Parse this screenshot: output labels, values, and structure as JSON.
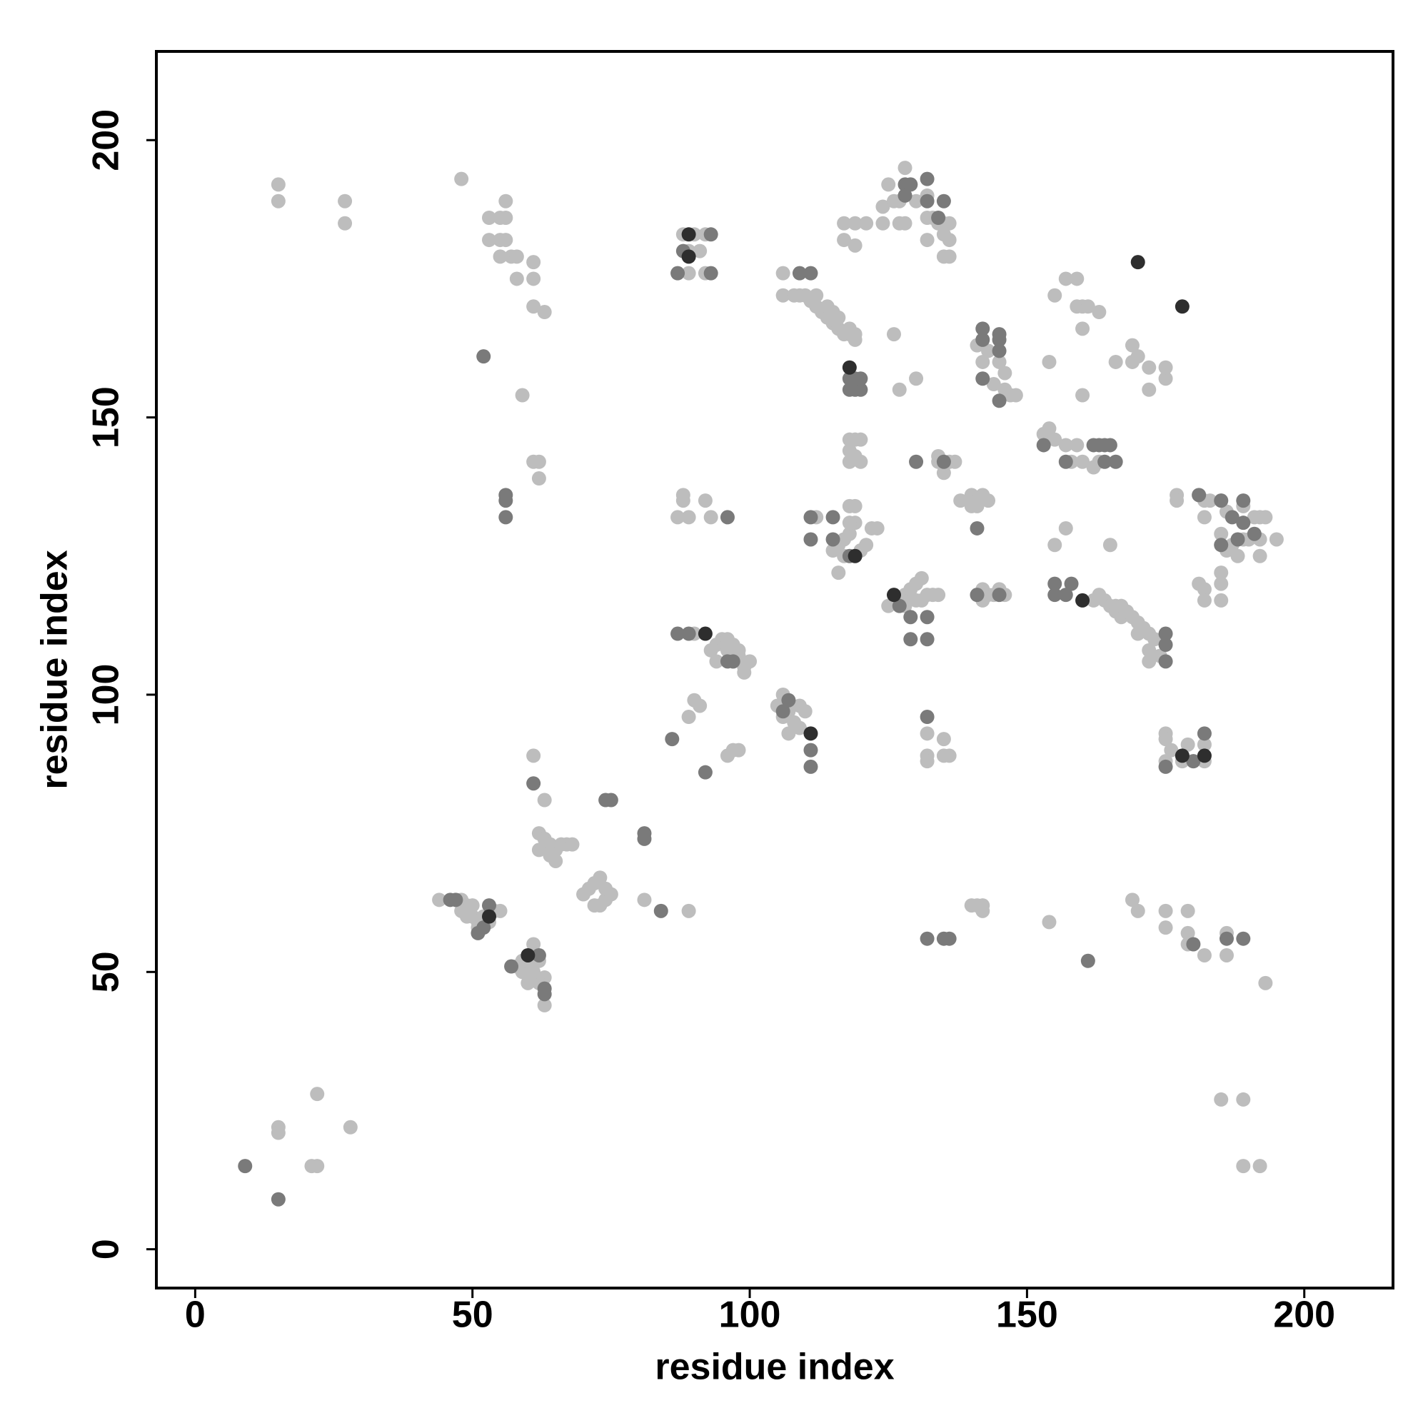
{
  "chart_data": {
    "type": "scatter",
    "xlabel": "residue index",
    "ylabel": "residue index",
    "xlim": [
      -7,
      216
    ],
    "ylim": [
      -7,
      216
    ],
    "xticks": [
      0,
      50,
      100,
      150,
      200
    ],
    "yticks": [
      0,
      50,
      100,
      150,
      200
    ],
    "series": [
      {
        "color": "#bdbdbd",
        "x": [
          15,
          15,
          21,
          22,
          22,
          28,
          185,
          189,
          189,
          192,
          193,
          15,
          15,
          27,
          27,
          48,
          53,
          53,
          55,
          56,
          55,
          56,
          56,
          55,
          57,
          58,
          58,
          61,
          61,
          61,
          63,
          59,
          61,
          62,
          62,
          44,
          48,
          49,
          50,
          49,
          50,
          51,
          52,
          53,
          54,
          55,
          51,
          48,
          58,
          59,
          60,
          61,
          61,
          62,
          63,
          60,
          62,
          63,
          59,
          61,
          61,
          63,
          62,
          63,
          64,
          65,
          66,
          67,
          62,
          64,
          65,
          68,
          70,
          71,
          72,
          73,
          73,
          74,
          75,
          72,
          74,
          81,
          89,
          89,
          90,
          91,
          96,
          97,
          98,
          90,
          93,
          94,
          95,
          96,
          97,
          98,
          99,
          100,
          96,
          94,
          99,
          97,
          98,
          88,
          88,
          87,
          89,
          92,
          93,
          88,
          89,
          90,
          91,
          92,
          89,
          92,
          105,
          106,
          107,
          108,
          109,
          110,
          107,
          109,
          106,
          106,
          106,
          108,
          110,
          111,
          112,
          113,
          114,
          115,
          116,
          117,
          118,
          119,
          114,
          115,
          116,
          118,
          119,
          112,
          109,
          118,
          119,
          120,
          118,
          119,
          120,
          118,
          118,
          119,
          119,
          118,
          117,
          116,
          115,
          117,
          120,
          121,
          122,
          123,
          116,
          112,
          118,
          125,
          127,
          128,
          129,
          130,
          131,
          128,
          130,
          132,
          133,
          134,
          131,
          132,
          132,
          132,
          135,
          135,
          136,
          126,
          127,
          130,
          134,
          135,
          136,
          137,
          134,
          124,
          125,
          126,
          127,
          127,
          128,
          129,
          130,
          128,
          132,
          132,
          133,
          134,
          135,
          132,
          135,
          136,
          135,
          136,
          136,
          117,
          119,
          121,
          117,
          119,
          124,
          140,
          141,
          142,
          142,
          138,
          140,
          141,
          141,
          142,
          143,
          140,
          141,
          142,
          143,
          144,
          145,
          146,
          142,
          141,
          142,
          143,
          145,
          146,
          147,
          148,
          146,
          144,
          153,
          154,
          155,
          154,
          155,
          157,
          155,
          157,
          159,
          159,
          160,
          160,
          161,
          160,
          163,
          157,
          159,
          158,
          160,
          162,
          163,
          165,
          162,
          163,
          164,
          165,
          166,
          167,
          168,
          169,
          170,
          171,
          172,
          173,
          170,
          172,
          172,
          174,
          166,
          167,
          166,
          169,
          169,
          170,
          172,
          172,
          175,
          175,
          175,
          175,
          175,
          176,
          178,
          179,
          180,
          182,
          182,
          169,
          170,
          175,
          175,
          179,
          179,
          179,
          182,
          186,
          186,
          154,
          177,
          177,
          181,
          182,
          183,
          182,
          185,
          186,
          185,
          186,
          187,
          189,
          190,
          191,
          192,
          192,
          193,
          195,
          192,
          188,
          181,
          182,
          185,
          185,
          185,
          182,
          189
        ],
        "y": [
          22,
          21,
          15,
          15,
          28,
          22,
          27,
          27,
          15,
          15,
          48,
          192,
          189,
          189,
          185,
          193,
          186,
          182,
          186,
          186,
          182,
          182,
          189,
          179,
          179,
          179,
          175,
          178,
          175,
          170,
          169,
          154,
          142,
          142,
          139,
          63,
          63,
          62,
          62,
          60,
          60,
          59,
          60,
          59,
          61,
          61,
          58,
          61,
          51,
          50,
          52,
          53,
          55,
          52,
          49,
          48,
          48,
          44,
          52,
          50,
          89,
          81,
          75,
          74,
          73,
          72,
          73,
          73,
          72,
          71,
          70,
          73,
          64,
          65,
          66,
          67,
          62,
          63,
          64,
          62,
          65,
          63,
          61,
          96,
          99,
          98,
          89,
          90,
          90,
          111,
          108,
          109,
          110,
          108,
          106,
          107,
          105,
          106,
          110,
          106,
          104,
          109,
          108,
          136,
          135,
          132,
          132,
          135,
          132,
          183,
          180,
          183,
          180,
          183,
          176,
          176,
          98,
          100,
          97,
          95,
          98,
          97,
          93,
          94,
          96,
          176,
          172,
          172,
          172,
          171,
          170,
          169,
          168,
          167,
          166,
          165,
          165,
          164,
          170,
          169,
          168,
          166,
          165,
          172,
          172,
          146,
          146,
          146,
          144,
          143,
          142,
          142,
          134,
          134,
          131,
          129,
          128,
          127,
          126,
          125,
          126,
          127,
          130,
          130,
          122,
          132,
          131,
          116,
          117,
          118,
          119,
          120,
          121,
          116,
          117,
          118,
          118,
          118,
          117,
          93,
          89,
          88,
          92,
          89,
          89,
          165,
          155,
          157,
          142,
          140,
          142,
          142,
          143,
          188,
          192,
          189,
          189,
          185,
          195,
          192,
          189,
          185,
          190,
          186,
          186,
          185,
          185,
          182,
          183,
          182,
          179,
          179,
          185,
          185,
          185,
          185,
          182,
          181,
          185,
          62,
          62,
          61,
          62,
          135,
          136,
          135,
          134,
          136,
          135,
          134,
          118,
          119,
          118,
          118,
          119,
          118,
          117,
          163,
          160,
          162,
          160,
          158,
          154,
          154,
          155,
          156,
          147,
          148,
          146,
          160,
          127,
          130,
          172,
          175,
          175,
          170,
          170,
          166,
          170,
          154,
          169,
          145,
          145,
          142,
          142,
          141,
          142,
          127,
          117,
          118,
          117,
          116,
          115,
          114,
          115,
          114,
          113,
          112,
          111,
          110,
          111,
          108,
          106,
          107,
          116,
          116,
          160,
          163,
          160,
          161,
          159,
          155,
          157,
          159,
          93,
          92,
          88,
          90,
          88,
          91,
          88,
          91,
          88,
          63,
          61,
          61,
          58,
          61,
          57,
          55,
          53,
          57,
          53,
          59,
          136,
          135,
          136,
          135,
          135,
          132,
          135,
          133,
          129,
          126,
          127,
          128,
          128,
          132,
          128,
          132,
          132,
          128,
          125,
          125,
          120,
          119,
          122,
          120,
          117,
          117,
          134
        ]
      },
      {
        "color": "#7a7a7a",
        "x": [
          9,
          15,
          52,
          56,
          56,
          56,
          46,
          47,
          51,
          52,
          53,
          57,
          63,
          63,
          62,
          61,
          74,
          75,
          81,
          81,
          84,
          86,
          92,
          87,
          89,
          96,
          97,
          96,
          93,
          93,
          88,
          87,
          106,
          107,
          111,
          111,
          109,
          111,
          118,
          119,
          119,
          118,
          120,
          120,
          111,
          115,
          111,
          115,
          118,
          127,
          129,
          132,
          129,
          132,
          132,
          130,
          135,
          128,
          129,
          128,
          132,
          132,
          135,
          134,
          132,
          135,
          136,
          141,
          141,
          145,
          142,
          142,
          142,
          145,
          145,
          145,
          145,
          153,
          157,
          162,
          163,
          164,
          165,
          166,
          164,
          155,
          158,
          157,
          155,
          175,
          175,
          175,
          175,
          180,
          182,
          180,
          186,
          189,
          161,
          181,
          185,
          187,
          188,
          189,
          189,
          191,
          185
        ],
        "y": [
          15,
          9,
          161,
          136,
          135,
          132,
          63,
          63,
          57,
          58,
          62,
          51,
          47,
          46,
          53,
          84,
          81,
          81,
          75,
          74,
          61,
          92,
          86,
          111,
          111,
          106,
          106,
          132,
          183,
          176,
          180,
          176,
          97,
          99,
          90,
          87,
          176,
          176,
          157,
          157,
          155,
          155,
          155,
          157,
          132,
          132,
          128,
          128,
          125,
          116,
          114,
          114,
          110,
          110,
          96,
          142,
          142,
          192,
          192,
          190,
          193,
          189,
          189,
          186,
          56,
          56,
          56,
          130,
          118,
          118,
          166,
          164,
          157,
          165,
          164,
          162,
          153,
          145,
          142,
          145,
          145,
          145,
          145,
          142,
          142,
          120,
          120,
          118,
          118,
          111,
          109,
          106,
          87,
          88,
          93,
          55,
          56,
          56,
          52,
          136,
          135,
          132,
          128,
          131,
          135,
          129,
          127
        ]
      },
      {
        "color": "#2e2e2e",
        "x": [
          53,
          60,
          89,
          89,
          92,
          111,
          118,
          119,
          126,
          160,
          170,
          178,
          178,
          182
        ],
        "y": [
          60,
          53,
          183,
          179,
          111,
          93,
          159,
          125,
          118,
          117,
          178,
          170,
          89,
          89
        ]
      }
    ]
  }
}
